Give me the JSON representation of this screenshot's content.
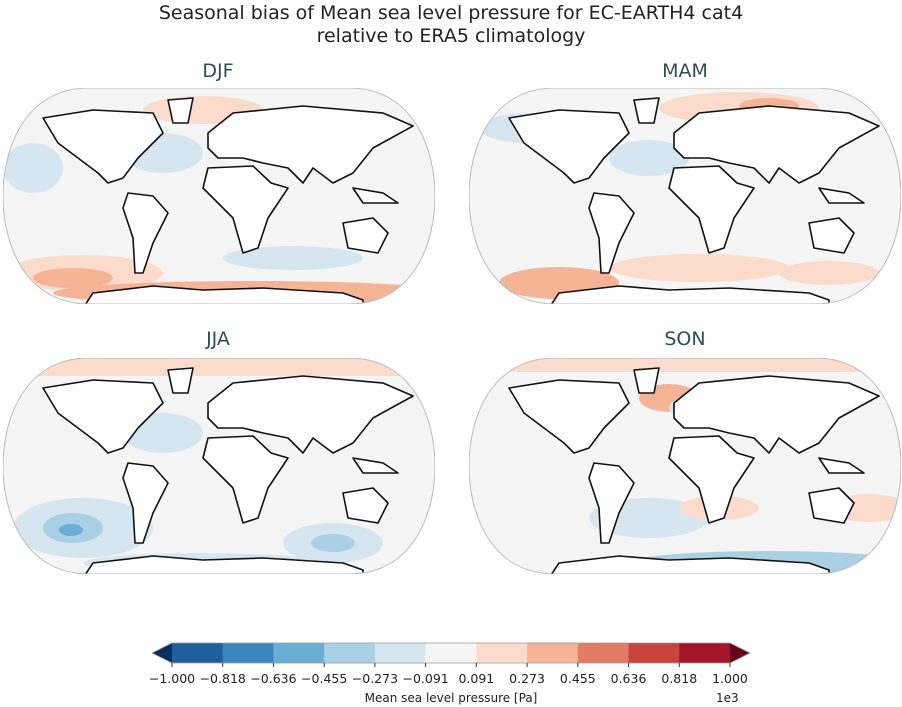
{
  "title_line1": "Seasonal bias of Mean sea level pressure for EC-EARTH4 cat4",
  "title_line2": "relative to ERA5 climatology",
  "panels": [
    {
      "label": "DJF"
    },
    {
      "label": "MAM"
    },
    {
      "label": "JJA"
    },
    {
      "label": "SON"
    }
  ],
  "colorbar": {
    "label": "Mean sea level pressure [Pa]",
    "exponent": "1e3",
    "ticks": [
      "−1.000",
      "−0.818",
      "−0.636",
      "−0.455",
      "−0.273",
      "−0.091",
      "0.091",
      "0.273",
      "0.455",
      "0.636",
      "0.818",
      "1.000"
    ],
    "under_color": "#053061",
    "over_color": "#67001f",
    "colors": [
      "#1f5fa0",
      "#3a87c0",
      "#6aaed6",
      "#a9d0e4",
      "#d6e6f0",
      "#f5f5f5",
      "#fbdccc",
      "#f4b495",
      "#e27d63",
      "#c8443d",
      "#a51529"
    ]
  }
}
